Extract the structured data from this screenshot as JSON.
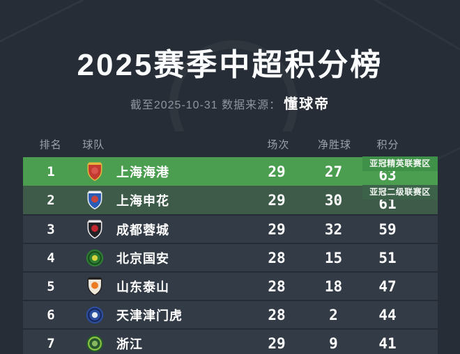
{
  "page": {
    "title": "2025赛季中超积分榜",
    "subtitle_prefix": "截至2025-10-31 数据来源：",
    "source_name": "懂球帝"
  },
  "table": {
    "headers": {
      "rank": "排名",
      "team": "球队",
      "played": "场次",
      "goal_diff": "净胜球",
      "points": "积分"
    },
    "rows": [
      {
        "rank": "1",
        "team": "上海海港",
        "played": "29",
        "goal_diff": "27",
        "points": "63",
        "tag": "亚冠精英联赛区",
        "zone": "acl_elite",
        "badge": {
          "name": "shanghai-port-crest",
          "shape": "shield",
          "colors": [
            "#c23a30",
            "#e7b53c",
            "#d8544c"
          ]
        }
      },
      {
        "rank": "2",
        "team": "上海申花",
        "played": "29",
        "goal_diff": "30",
        "points": "61",
        "tag": "亚冠二级联赛区",
        "zone": "acl_two",
        "badge": {
          "name": "shanghai-shenhua-crest",
          "shape": "shield",
          "colors": [
            "#2a5cb5",
            "#e9edf2",
            "#c8453f"
          ]
        }
      },
      {
        "rank": "3",
        "team": "成都蓉城",
        "played": "29",
        "goal_diff": "32",
        "points": "59",
        "badge": {
          "name": "chengdu-rongcheng-crest",
          "shape": "shield",
          "colors": [
            "#232227",
            "#f0eeee",
            "#c0272e"
          ]
        }
      },
      {
        "rank": "4",
        "team": "北京国安",
        "played": "28",
        "goal_diff": "15",
        "points": "51",
        "badge": {
          "name": "beijing-guoan-crest",
          "shape": "circle",
          "colors": [
            "#2f7c34",
            "#174f1d",
            "#d6d33f"
          ]
        }
      },
      {
        "rank": "5",
        "team": "山东泰山",
        "played": "28",
        "goal_diff": "18",
        "points": "47",
        "badge": {
          "name": "shandong-taishan-crest",
          "shape": "shield",
          "colors": [
            "#efe8da",
            "#23211f",
            "#ee7b20"
          ]
        }
      },
      {
        "rank": "6",
        "team": "天津津门虎",
        "played": "28",
        "goal_diff": "2",
        "points": "44",
        "badge": {
          "name": "tianjin-jinmen-tiger-crest",
          "shape": "circle",
          "colors": [
            "#2d4f9e",
            "#18275f",
            "#e8ecf5"
          ]
        }
      },
      {
        "rank": "7",
        "team": "浙江",
        "played": "29",
        "goal_diff": "9",
        "points": "41",
        "badge": {
          "name": "zhejiang-crest",
          "shape": "circle",
          "colors": [
            "#26572f",
            "#8cc63f",
            "#87b860"
          ]
        }
      }
    ]
  },
  "colors": {
    "page_bg": "#262d36",
    "table_bg": "#272d37",
    "row_bg": "#333b46",
    "separator": "#262c35",
    "header_text": "#9aa2ad",
    "acl_elite_row": "#4b9e50",
    "acl_elite_tag": "#3f9048",
    "acl_two_row": "#3d5b48",
    "acl_two_tag": "#3c6349"
  },
  "chart_data": {
    "type": "table",
    "title": "2025赛季中超积分榜",
    "subtitle": "截至2025-10-31 数据来源：懂球帝",
    "columns": [
      "排名",
      "球队",
      "场次",
      "净胜球",
      "积分"
    ],
    "rows": [
      [
        1,
        "上海海港",
        29,
        27,
        63
      ],
      [
        2,
        "上海申花",
        29,
        30,
        61
      ],
      [
        3,
        "成都蓉城",
        29,
        32,
        59
      ],
      [
        4,
        "北京国安",
        28,
        15,
        51
      ],
      [
        5,
        "山东泰山",
        28,
        18,
        47
      ],
      [
        6,
        "天津津门虎",
        28,
        2,
        44
      ],
      [
        7,
        "浙江",
        29,
        9,
        41
      ]
    ],
    "annotations": [
      "第1名: 亚冠精英联赛区",
      "第2名: 亚冠二级联赛区"
    ]
  }
}
